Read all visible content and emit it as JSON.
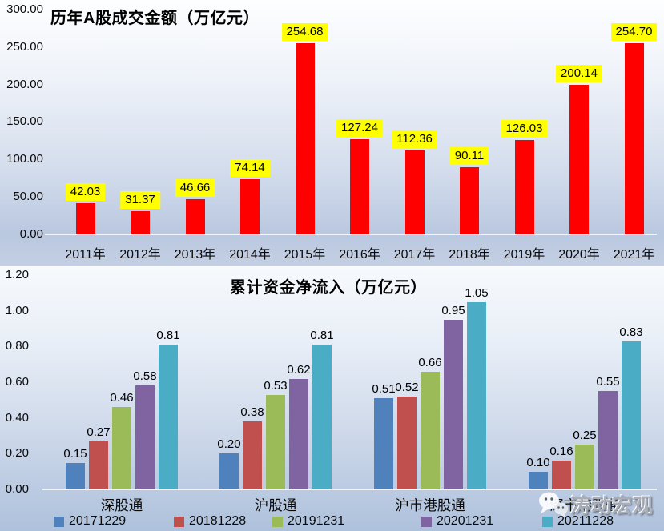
{
  "chart_data": [
    {
      "type": "bar",
      "title": "历年A股成交金额（万亿元）",
      "categories": [
        "2011年",
        "2012年",
        "2013年",
        "2014年",
        "2015年",
        "2016年",
        "2017年",
        "2018年",
        "2019年",
        "2020年",
        "2021年"
      ],
      "values": [
        42.03,
        31.37,
        46.66,
        74.14,
        254.68,
        127.24,
        112.36,
        90.11,
        126.03,
        200.14,
        254.7
      ],
      "ylim": [
        0,
        300
      ],
      "yticks": [
        "300.00",
        "250.00",
        "200.00",
        "150.00",
        "100.00",
        "50.00",
        "0.00"
      ],
      "grid": false,
      "legend": false,
      "bar_color": "#fe0000",
      "data_label_bg": "#ffff00",
      "data_label_color": "#000000"
    },
    {
      "type": "bar",
      "title": "累计资金净流入（万亿元）",
      "categories": [
        "深股通",
        "沪股通",
        "沪市港股通",
        "深市港股通"
      ],
      "series": [
        {
          "name": "20171229",
          "color": "#4f81bd",
          "values": [
            0.15,
            0.2,
            0.51,
            0.1
          ]
        },
        {
          "name": "20181228",
          "color": "#c0504d",
          "values": [
            0.27,
            0.38,
            0.52,
            0.16
          ]
        },
        {
          "name": "20191231",
          "color": "#9bbb59",
          "values": [
            0.46,
            0.53,
            0.66,
            0.25
          ]
        },
        {
          "name": "20201231",
          "color": "#8064a2",
          "values": [
            0.58,
            0.62,
            0.95,
            0.55
          ]
        },
        {
          "name": "20211228",
          "color": "#4bacc6",
          "values": [
            0.81,
            0.81,
            1.05,
            0.83
          ]
        }
      ],
      "ylim": [
        0,
        1.2
      ],
      "yticks": [
        "1.20",
        "1.00",
        "0.80",
        "0.60",
        "0.40",
        "0.20",
        "0.00"
      ],
      "grid": false,
      "legend_position": "bottom"
    }
  ],
  "watermark": {
    "text": "涛动宏观",
    "icon": "wechat-icon"
  }
}
